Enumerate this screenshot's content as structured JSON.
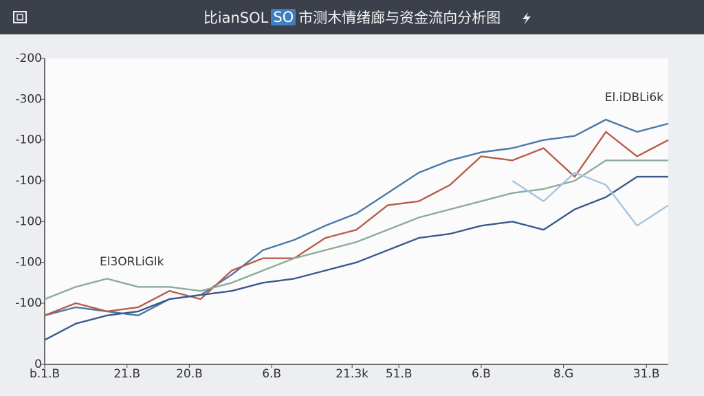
{
  "chart_data": {
    "type": "line",
    "title_parts": [
      "比ianSOL",
      "SO",
      "市测木情绪廊与资金流向分析图"
    ],
    "annotations": [
      "El.iDBLi6k",
      "El3ORLiGlk"
    ],
    "x": [
      0,
      5,
      10,
      15,
      20,
      25,
      30,
      35,
      40,
      45,
      50,
      55,
      60,
      65,
      70,
      75,
      80,
      85,
      90,
      95,
      100
    ],
    "xlim": [
      0,
      100
    ],
    "xticks": [
      {
        "value": 0,
        "label": "b.1.B"
      },
      {
        "value": 13.2,
        "label": "21.B"
      },
      {
        "value": 23.2,
        "label": "20.B"
      },
      {
        "value": 36.4,
        "label": "6.B"
      },
      {
        "value": 49.3,
        "label": "21.3k"
      },
      {
        "value": 56.8,
        "label": "51.B"
      },
      {
        "value": 70,
        "label": "6.B"
      },
      {
        "value": 83.2,
        "label": "8.G"
      },
      {
        "value": 96.5,
        "label": "31.B"
      }
    ],
    "ylim": [
      0,
      7.5
    ],
    "yticks": [
      0,
      {
        "value": 1.5,
        "label": "-100"
      },
      {
        "value": 2.5,
        "label": "-100"
      },
      {
        "value": 3.5,
        "label": "-100"
      },
      {
        "value": 4.5,
        "label": "-100"
      },
      {
        "value": 5.5,
        "label": "-100"
      },
      {
        "value": 6.5,
        "label": "-300"
      },
      {
        "value": 7.5,
        "label": "-200"
      }
    ],
    "series": [
      {
        "color": "#4a78a8",
        "values": [
          1.2,
          1.4,
          1.3,
          1.2,
          1.6,
          1.7,
          2.2,
          2.8,
          3.05,
          3.4,
          3.7,
          4.2,
          4.7,
          5.0,
          5.2,
          5.3,
          5.5,
          5.6,
          6.0,
          5.7,
          5.9
        ]
      },
      {
        "color": "#b85c48",
        "values": [
          1.2,
          1.5,
          1.3,
          1.4,
          1.8,
          1.6,
          2.3,
          2.6,
          2.6,
          3.1,
          3.3,
          3.9,
          4.0,
          4.4,
          5.1,
          5.0,
          5.3,
          4.6,
          5.7,
          5.1,
          5.5
        ]
      },
      {
        "color": "#8faa9a",
        "values": [
          1.6,
          1.9,
          2.1,
          1.9,
          1.9,
          1.8,
          2.0,
          2.3,
          2.6,
          2.8,
          3.0,
          3.3,
          3.6,
          3.8,
          4.0,
          4.2,
          4.3,
          4.5,
          5.0,
          5.0,
          5.0
        ]
      },
      {
        "color": "#3a5a8a",
        "values": [
          0.6,
          1.0,
          1.2,
          1.3,
          1.6,
          1.7,
          1.8,
          2.0,
          2.1,
          2.3,
          2.5,
          2.8,
          3.1,
          3.2,
          3.4,
          3.5,
          3.3,
          3.8,
          4.1,
          4.6,
          4.6
        ]
      },
      {
        "color": "#a8c4dc",
        "values": [
          null,
          null,
          null,
          null,
          null,
          null,
          null,
          null,
          null,
          null,
          null,
          null,
          null,
          null,
          null,
          4.5,
          4.0,
          4.7,
          4.4,
          3.4,
          3.9
        ]
      }
    ]
  }
}
